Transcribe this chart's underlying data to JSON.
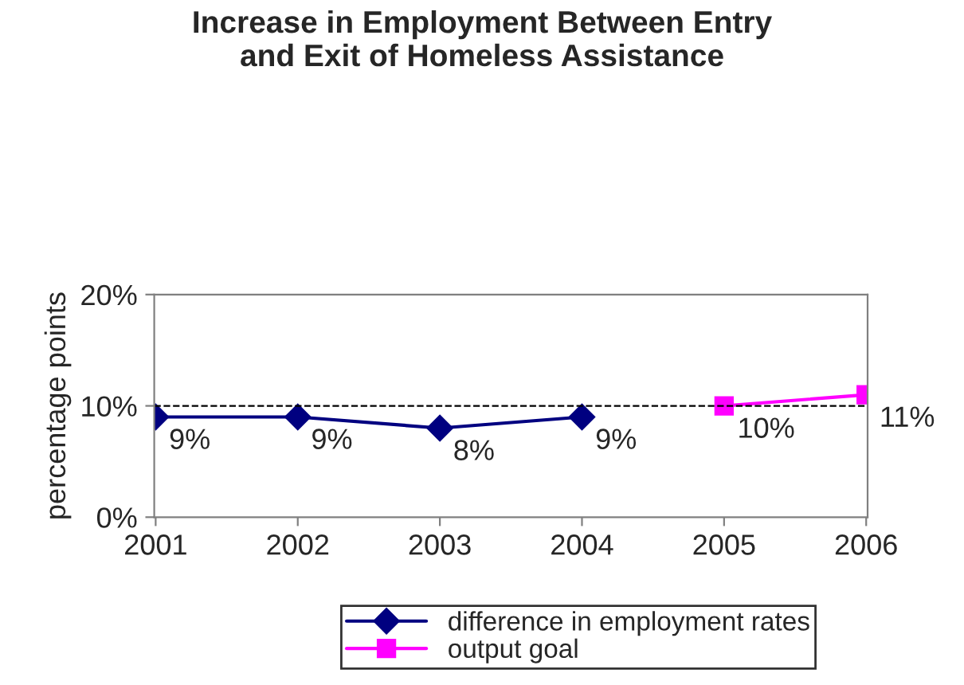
{
  "chart_data": {
    "type": "line",
    "title": "Increase in Employment Between Entry\nand Exit of Homeless Assistance",
    "ylabel": "percentage points",
    "categories": [
      "2001",
      "2002",
      "2003",
      "2004",
      "2005",
      "2006"
    ],
    "series": [
      {
        "name": "difference in employment rates",
        "color": "#000080",
        "marker": "diamond",
        "values": [
          9,
          9,
          8,
          9,
          null,
          null
        ],
        "value_labels": [
          "9%",
          "9%",
          "8%",
          "9%",
          null,
          null
        ]
      },
      {
        "name": "output goal",
        "color": "#ff00ff",
        "marker": "square",
        "values": [
          null,
          null,
          null,
          null,
          10,
          11
        ],
        "value_labels": [
          null,
          null,
          null,
          null,
          "10%",
          "11%"
        ]
      }
    ],
    "ylim": [
      0,
      20
    ],
    "yticks": [
      {
        "value": 0,
        "label": "0%"
      },
      {
        "value": 10,
        "label": "10%"
      },
      {
        "value": 20,
        "label": "20%"
      }
    ],
    "ref_lines": [
      {
        "axis": "y",
        "value": 10,
        "color": "#000000",
        "line_style": "dashed"
      }
    ],
    "legend": "bottom",
    "grid": false,
    "line_style": "solid"
  }
}
